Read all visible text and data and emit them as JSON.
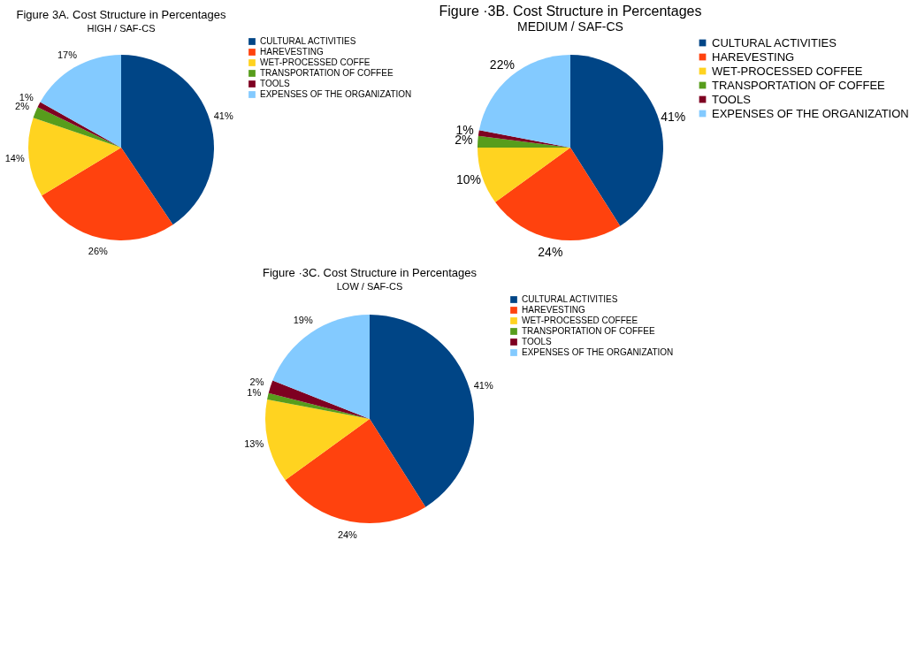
{
  "chart_data": [
    {
      "type": "pie",
      "title": "Figure 3A. Cost Structure in Percentages",
      "subtitle": "HIGH / SAF-CS",
      "categories": [
        "CULTURAL ACTIVITIES",
        "HAREVESTING",
        "WET-PROCESSED COFFE",
        "TRANSPORTATION OF COFFEE",
        "TOOLS",
        "EXPENSES OF THE ORGANIZATION"
      ],
      "values": [
        41,
        26,
        14,
        2,
        1,
        17
      ],
      "colors": [
        "#004586",
        "#ff420e",
        "#ffd320",
        "#579d1c",
        "#7e0021",
        "#83caff"
      ],
      "value_labels": [
        "41%",
        "26%",
        "14%",
        "2%",
        "1%",
        "17%"
      ],
      "legend": "right"
    },
    {
      "type": "pie",
      "title": "Figure ·3B. Cost Structure in Percentages",
      "subtitle": "MEDIUM / SAF-CS",
      "categories": [
        "CULTURAL ACTIVITIES",
        "HAREVESTING",
        "WET-PROCESSED COFFEE",
        "TRANSPORTATION OF COFFEE",
        "TOOLS",
        "EXPENSES OF THE ORGANIZATION"
      ],
      "values": [
        41,
        24,
        10,
        2,
        1,
        22
      ],
      "colors": [
        "#004586",
        "#ff420e",
        "#ffd320",
        "#579d1c",
        "#7e0021",
        "#83caff"
      ],
      "value_labels": [
        "41%",
        "24%",
        "10%",
        "2%",
        "1%",
        "22%"
      ],
      "legend": "right"
    },
    {
      "type": "pie",
      "title": "Figure ·3C. Cost Structure in Percentages",
      "subtitle": "LOW  / SAF-CS",
      "categories": [
        "CULTURAL ACTIVITIES",
        "HAREVESTING",
        "WET-PROCESSED COFFEE",
        "TRANSPORTATION OF COFFEE",
        "TOOLS",
        "EXPENSES OF THE ORGANIZATION"
      ],
      "values": [
        41,
        24,
        13,
        1,
        2,
        19
      ],
      "colors": [
        "#004586",
        "#ff420e",
        "#ffd320",
        "#579d1c",
        "#7e0021",
        "#83caff"
      ],
      "value_labels": [
        "41%",
        "24%",
        "13%",
        "1%",
        "2%",
        "19%"
      ],
      "legend": "right"
    }
  ]
}
